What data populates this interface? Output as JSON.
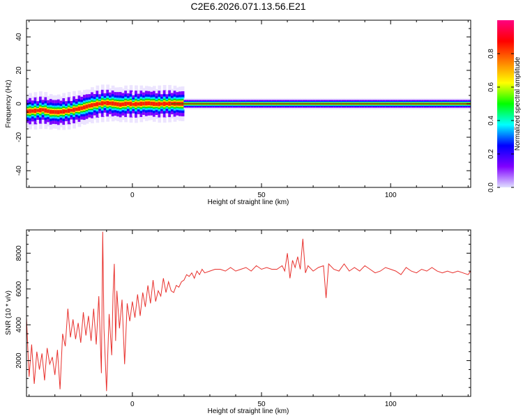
{
  "title": "C2E6.2026.071.13.56.E21",
  "colors": {
    "snr_line": "#e8302c",
    "frame": "#000000",
    "center_line": "#007a00"
  },
  "chart_data": [
    {
      "type": "heatmap",
      "title": "C2E6.2026.071.13.56.E21",
      "xlabel": "Height of straight line (km)",
      "ylabel": "Frequency (Hz)",
      "xlim": [
        -41,
        131
      ],
      "ylim": [
        -50,
        50
      ],
      "x_ticks": [
        0,
        50,
        100
      ],
      "x_tick_labels": [
        "0",
        "50",
        "100"
      ],
      "y_ticks": [
        40,
        20,
        0,
        -20,
        -40
      ],
      "y_tick_labels": [
        "40",
        "20",
        "0",
        "-20",
        "-40"
      ],
      "peak_frequency_track": {
        "x": [
          -41,
          -38,
          -35,
          -32,
          -29,
          -26,
          -23,
          -20,
          -17,
          -14,
          -11,
          -8,
          -5,
          -2,
          0,
          3,
          6,
          9,
          12,
          15,
          18,
          25,
          131
        ],
        "freq": [
          -4.5,
          -4.2,
          -3.6,
          -4.8,
          -5.0,
          -4.4,
          -3.6,
          -2.6,
          -1.2,
          -0.2,
          0.5,
          0.2,
          -0.5,
          0.2,
          -0.3,
          0.0,
          0.3,
          -0.2,
          0.0,
          0.1,
          0.0,
          0.0,
          0.0
        ]
      },
      "colorbar": {
        "label": "Normalized spectral amplitude",
        "range": [
          0,
          1
        ],
        "ticks": [
          0.0,
          0.2,
          0.4,
          0.6,
          0.8
        ],
        "tick_labels": [
          "0.0",
          "0.2",
          "0.4",
          "0.6",
          "0.8"
        ],
        "colormap": [
          "#e0e0ff",
          "#8000ff",
          "#0000ff",
          "#00ffff",
          "#00ff00",
          "#ffff00",
          "#ff8000",
          "#ff0000",
          "#ff0080"
        ]
      }
    },
    {
      "type": "line",
      "xlabel": "Height of straight line (km)",
      "ylabel": "SNR (10 * v/v)",
      "xlim": [
        -41,
        131
      ],
      "ylim": [
        0,
        9300
      ],
      "x_ticks": [
        0,
        50,
        100
      ],
      "x_tick_labels": [
        "0",
        "50",
        "100"
      ],
      "y_ticks": [
        2000,
        4000,
        6000,
        8000
      ],
      "y_tick_labels": [
        "2000",
        "4000",
        "6000",
        "8000"
      ],
      "series": [
        {
          "name": "SNR",
          "x": [
            -41,
            -40,
            -39,
            -38,
            -37,
            -36,
            -35,
            -34,
            -33,
            -32,
            -31,
            -30,
            -29,
            -28,
            -27,
            -26,
            -25,
            -24,
            -23,
            -22,
            -21,
            -20,
            -19,
            -18,
            -17,
            -16,
            -15,
            -14,
            -13,
            -12,
            -11.5,
            -11,
            -10,
            -9,
            -8,
            -7.5,
            -7,
            -6.5,
            -6,
            -5,
            -4,
            -3,
            -2,
            -1,
            0,
            1,
            2,
            3,
            4,
            5,
            6,
            7,
            8,
            9,
            10,
            11,
            12,
            13,
            14,
            15,
            16,
            17,
            18,
            19,
            20,
            21,
            22,
            23,
            24,
            25,
            26,
            27,
            28,
            30,
            32,
            34,
            36,
            38,
            40,
            42,
            44,
            46,
            48,
            50,
            52,
            54,
            56,
            58,
            59,
            60,
            61,
            62,
            63,
            64,
            65,
            66,
            67,
            68,
            70,
            72,
            74,
            75,
            76,
            78,
            80,
            82,
            84,
            86,
            88,
            90,
            92,
            94,
            96,
            98,
            100,
            102,
            104,
            106,
            108,
            110,
            112,
            114,
            116,
            118,
            120,
            122,
            124,
            126,
            128,
            130,
            131
          ],
          "y": [
            4400,
            1100,
            2900,
            700,
            2500,
            1500,
            2400,
            900,
            2700,
            1800,
            2200,
            1200,
            2600,
            400,
            3500,
            2800,
            4900,
            3300,
            4300,
            3200,
            4100,
            3000,
            4700,
            3400,
            4500,
            3100,
            4900,
            2900,
            5600,
            1300,
            9200,
            3800,
            300,
            4600,
            2300,
            5700,
            7400,
            3100,
            5900,
            3800,
            5400,
            1800,
            5200,
            4200,
            5300,
            4400,
            5700,
            4500,
            5800,
            5000,
            6200,
            5200,
            6500,
            5300,
            5900,
            5600,
            6600,
            5800,
            6400,
            5900,
            5800,
            6200,
            6100,
            6400,
            6500,
            6800,
            6700,
            6900,
            6600,
            7000,
            6800,
            7100,
            6900,
            7000,
            7100,
            7100,
            7000,
            7200,
            7000,
            7100,
            7200,
            7000,
            7300,
            7100,
            7200,
            7100,
            7100,
            7300,
            7000,
            8000,
            6600,
            7600,
            7200,
            7800,
            7100,
            8800,
            6900,
            7300,
            7000,
            7200,
            7300,
            5500,
            7400,
            7100,
            7000,
            7400,
            7000,
            7200,
            7000,
            7300,
            7100,
            6900,
            7000,
            7200,
            7100,
            7000,
            6800,
            7200,
            7000,
            6900,
            7100,
            7000,
            7200,
            7000,
            6900,
            7000,
            6900,
            7000,
            6900,
            6800,
            7000
          ]
        }
      ]
    }
  ]
}
